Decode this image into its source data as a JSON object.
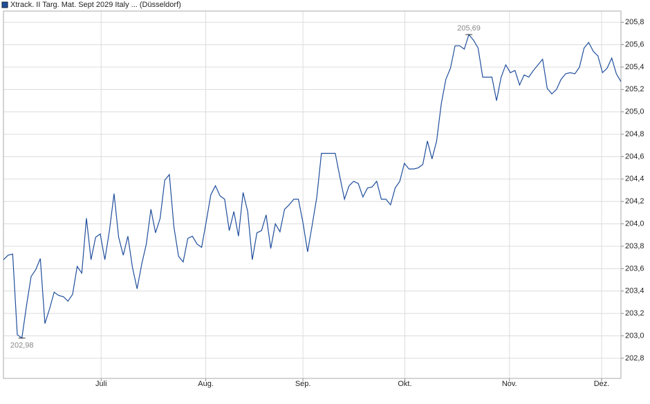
{
  "chart_data": {
    "type": "line",
    "series": [
      {
        "name": "Xtrack. II Targ. Mat. Sept 2029 Italy ... (Düsseldorf)",
        "color": "#1f4e9c",
        "values": [
          203.68,
          203.72,
          203.73,
          203.01,
          202.98,
          203.27,
          203.53,
          203.59,
          203.69,
          203.11,
          203.24,
          203.39,
          203.36,
          203.35,
          203.31,
          203.37,
          203.62,
          203.56,
          204.05,
          203.68,
          203.88,
          203.91,
          203.68,
          203.94,
          204.27,
          203.88,
          203.72,
          203.89,
          203.61,
          203.42,
          203.64,
          203.82,
          204.13,
          203.92,
          204.05,
          204.39,
          204.44,
          203.97,
          203.71,
          203.66,
          203.87,
          203.89,
          203.82,
          203.79,
          204.02,
          204.26,
          204.34,
          204.25,
          204.22,
          203.94,
          204.11,
          203.89,
          204.28,
          204.11,
          203.68,
          203.92,
          203.94,
          204.08,
          203.78,
          204.0,
          203.93,
          204.13,
          204.17,
          204.22,
          204.22,
          204.01,
          203.75,
          203.99,
          204.24,
          204.63,
          204.63,
          204.63,
          204.63,
          204.42,
          204.22,
          204.34,
          204.38,
          204.36,
          204.24,
          204.32,
          204.33,
          204.38,
          204.22,
          204.22,
          204.17,
          204.32,
          204.38,
          204.54,
          204.49,
          204.49,
          204.5,
          204.53,
          204.74,
          204.58,
          204.74,
          205.07,
          205.29,
          205.39,
          205.59,
          205.59,
          205.56,
          205.69,
          205.64,
          205.57,
          205.31,
          205.31,
          205.31,
          205.1,
          205.31,
          205.42,
          205.35,
          205.37,
          205.24,
          205.33,
          205.31,
          205.37,
          205.42,
          205.47,
          205.21,
          205.16,
          205.2,
          205.29,
          205.34,
          205.35,
          205.34,
          205.4,
          205.57,
          205.62,
          205.54,
          205.5,
          205.35,
          205.39,
          205.48,
          205.34,
          205.27
        ],
        "value_labels": [
          null,
          null,
          null,
          null,
          "202,98",
          null,
          null,
          null,
          null,
          null,
          null,
          null,
          null,
          null,
          null,
          null,
          null,
          null,
          null,
          null,
          null,
          null,
          null,
          null,
          null,
          null,
          null,
          null,
          null,
          null,
          null,
          null,
          null,
          null,
          null,
          null,
          null,
          null,
          null,
          null,
          null,
          null,
          null,
          null,
          null,
          null,
          null,
          null,
          null,
          null,
          null,
          null,
          null,
          null,
          null,
          null,
          null,
          null,
          null,
          null,
          null,
          null,
          null,
          null,
          null,
          null,
          null,
          null,
          null,
          null,
          null,
          null,
          null,
          null,
          null,
          null,
          null,
          null,
          null,
          null,
          null,
          null,
          null,
          null,
          null,
          null,
          null,
          null,
          null,
          null,
          null,
          null,
          null,
          null,
          null,
          null,
          null,
          null,
          null,
          null,
          null,
          "205,69",
          null,
          null,
          null,
          null,
          null,
          null,
          null,
          null,
          null,
          null,
          null,
          null,
          null,
          null,
          null,
          null,
          null,
          null,
          null,
          null,
          null,
          null,
          null,
          null,
          null,
          null,
          null,
          null,
          null,
          null,
          null,
          null,
          null
        ]
      }
    ],
    "xlim": [
      0,
      134
    ],
    "xticks": [
      {
        "value": 21.2,
        "label": "Juli"
      },
      {
        "value": 43.9,
        "label": "Aug."
      },
      {
        "value": 65.0,
        "label": "Sep."
      },
      {
        "value": 87.1,
        "label": "Okt."
      },
      {
        "value": 109.8,
        "label": "Nov."
      },
      {
        "value": 129.8,
        "label": "Dez."
      }
    ],
    "ylim": [
      202.62,
      205.9
    ],
    "yticks": [
      {
        "value": 202.8,
        "label": "202,8"
      },
      {
        "value": 203.0,
        "label": "203,0"
      },
      {
        "value": 203.2,
        "label": "203,2"
      },
      {
        "value": 203.4,
        "label": "203,4"
      },
      {
        "value": 203.6,
        "label": "203,6"
      },
      {
        "value": 203.8,
        "label": "203,8"
      },
      {
        "value": 204.0,
        "label": "204,0"
      },
      {
        "value": 204.2,
        "label": "204,2"
      },
      {
        "value": 204.4,
        "label": "204,4"
      },
      {
        "value": 204.6,
        "label": "204,6"
      },
      {
        "value": 204.8,
        "label": "204,8"
      },
      {
        "value": 205.0,
        "label": "205,0"
      },
      {
        "value": 205.2,
        "label": "205,2"
      },
      {
        "value": 205.4,
        "label": "205,4"
      },
      {
        "value": 205.6,
        "label": "205,6"
      },
      {
        "value": 205.8,
        "label": "205,8"
      }
    ],
    "grid": true
  }
}
